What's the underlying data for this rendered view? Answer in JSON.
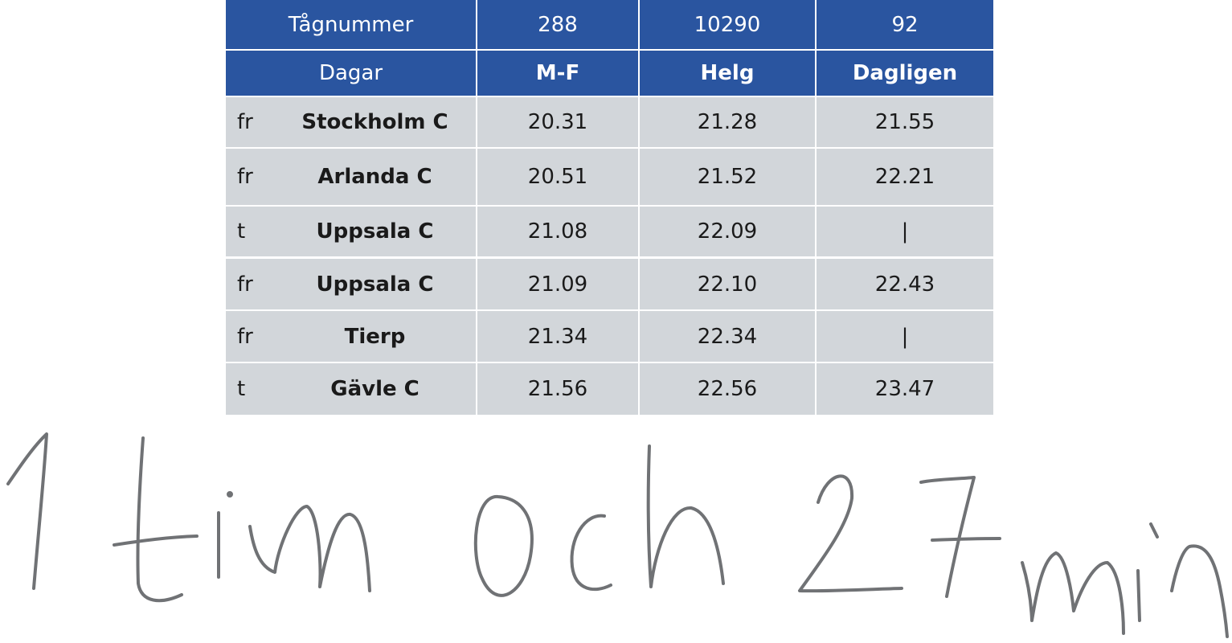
{
  "header": {
    "train_label": "Tågnummer",
    "days_label": "Dagar",
    "trains": [
      "288",
      "10290",
      "92"
    ],
    "days": [
      "M-F",
      "Helg",
      "Dagligen"
    ]
  },
  "rows": [
    {
      "prefix": "fr",
      "station": "Stockholm C",
      "times": [
        "20.31",
        "21.28",
        "21.55"
      ]
    },
    {
      "prefix": "fr",
      "station": "Arlanda C",
      "times": [
        "20.51",
        "21.52",
        "22.21"
      ]
    },
    {
      "prefix": "t",
      "station": "Uppsala C",
      "times": [
        "21.08",
        "22.09",
        "|"
      ]
    },
    {
      "prefix": "fr",
      "station": "Uppsala C",
      "times": [
        "21.09",
        "22.10",
        "22.43"
      ]
    },
    {
      "prefix": "fr",
      "station": "Tierp",
      "times": [
        "21.34",
        "22.34",
        "|"
      ]
    },
    {
      "prefix": "t",
      "station": "Gävle C",
      "times": [
        "21.56",
        "22.56",
        "23.47"
      ]
    }
  ],
  "handwritten_answer": "1 tim och 27 min"
}
